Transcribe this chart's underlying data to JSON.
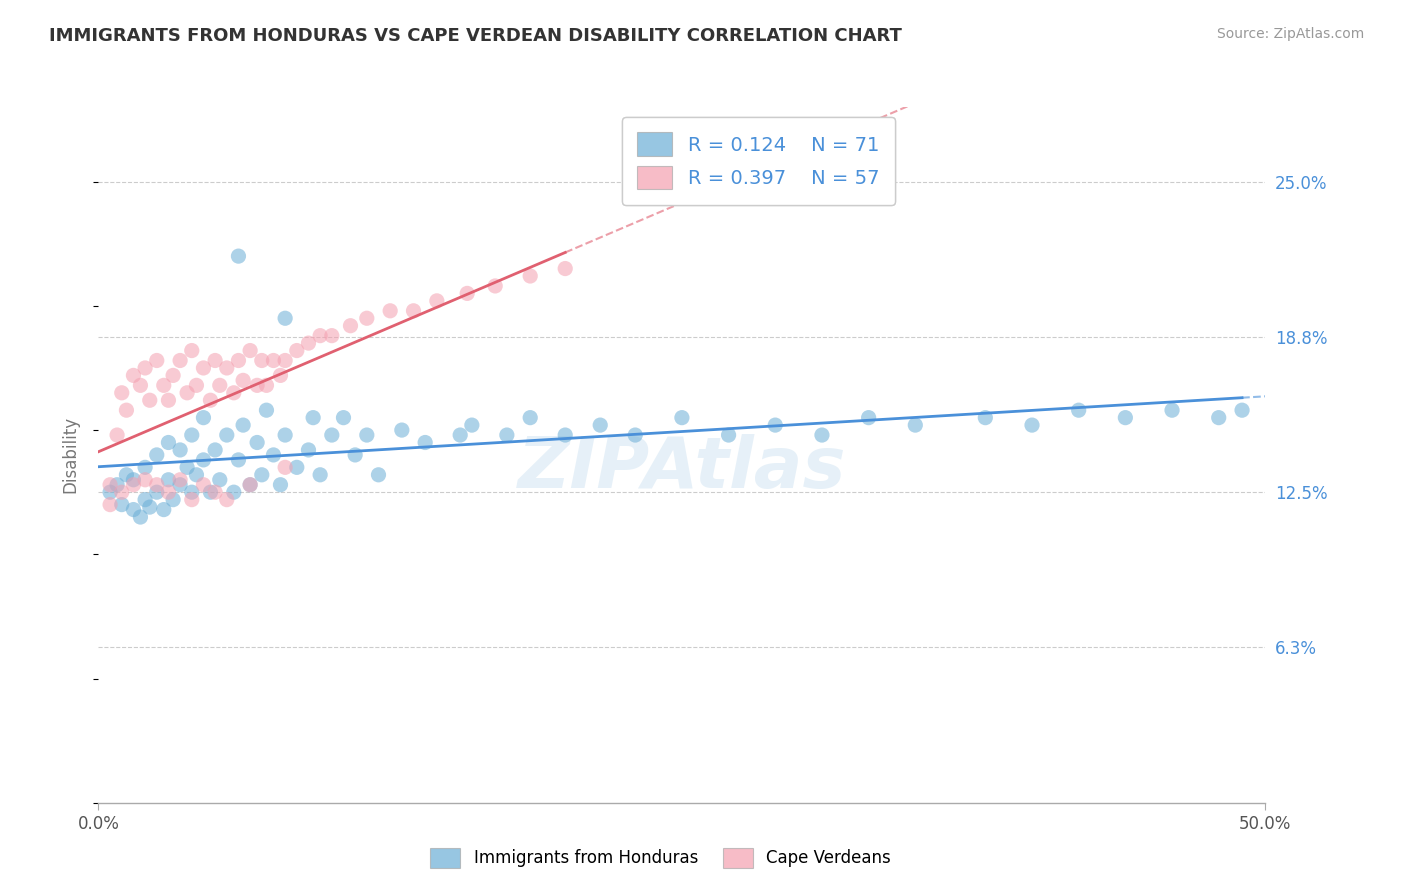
{
  "title": "IMMIGRANTS FROM HONDURAS VS CAPE VERDEAN DISABILITY CORRELATION CHART",
  "source": "Source: ZipAtlas.com",
  "ylabel": "Disability",
  "xlim": [
    0.0,
    0.5
  ],
  "ylim": [
    0.0,
    0.28
  ],
  "ytick_values": [
    0.0625,
    0.125,
    0.1875,
    0.25
  ],
  "ytick_labels": [
    "6.3%",
    "12.5%",
    "18.8%",
    "25.0%"
  ],
  "series1_color": "#6baed6",
  "series2_color": "#f4a0b0",
  "line1_color": "#4a90d9",
  "line2_color": "#e06070",
  "legend1_label": "Immigrants from Honduras",
  "legend2_label": "Cape Verdeans",
  "R1": 0.124,
  "N1": 71,
  "R2": 0.397,
  "N2": 57,
  "watermark": "ZIPAtlas",
  "background_color": "#ffffff",
  "grid_color": "#cccccc",
  "blue_scatter_x": [
    0.005,
    0.008,
    0.01,
    0.012,
    0.015,
    0.015,
    0.018,
    0.02,
    0.02,
    0.022,
    0.025,
    0.025,
    0.028,
    0.03,
    0.03,
    0.032,
    0.035,
    0.035,
    0.038,
    0.04,
    0.04,
    0.042,
    0.045,
    0.045,
    0.048,
    0.05,
    0.052,
    0.055,
    0.058,
    0.06,
    0.062,
    0.065,
    0.068,
    0.07,
    0.072,
    0.075,
    0.078,
    0.08,
    0.085,
    0.09,
    0.092,
    0.095,
    0.1,
    0.105,
    0.11,
    0.115,
    0.12,
    0.13,
    0.14,
    0.155,
    0.16,
    0.175,
    0.185,
    0.2,
    0.215,
    0.23,
    0.25,
    0.27,
    0.29,
    0.31,
    0.33,
    0.35,
    0.38,
    0.4,
    0.42,
    0.44,
    0.46,
    0.48,
    0.49,
    0.06,
    0.08
  ],
  "blue_scatter_y": [
    0.125,
    0.128,
    0.12,
    0.132,
    0.118,
    0.13,
    0.115,
    0.122,
    0.135,
    0.119,
    0.125,
    0.14,
    0.118,
    0.13,
    0.145,
    0.122,
    0.128,
    0.142,
    0.135,
    0.125,
    0.148,
    0.132,
    0.138,
    0.155,
    0.125,
    0.142,
    0.13,
    0.148,
    0.125,
    0.138,
    0.152,
    0.128,
    0.145,
    0.132,
    0.158,
    0.14,
    0.128,
    0.148,
    0.135,
    0.142,
    0.155,
    0.132,
    0.148,
    0.155,
    0.14,
    0.148,
    0.132,
    0.15,
    0.145,
    0.148,
    0.152,
    0.148,
    0.155,
    0.148,
    0.152,
    0.148,
    0.155,
    0.148,
    0.152,
    0.148,
    0.155,
    0.152,
    0.155,
    0.152,
    0.158,
    0.155,
    0.158,
    0.155,
    0.158,
    0.22,
    0.195
  ],
  "pink_scatter_x": [
    0.005,
    0.008,
    0.01,
    0.012,
    0.015,
    0.018,
    0.02,
    0.022,
    0.025,
    0.028,
    0.03,
    0.032,
    0.035,
    0.038,
    0.04,
    0.042,
    0.045,
    0.048,
    0.05,
    0.052,
    0.055,
    0.058,
    0.06,
    0.062,
    0.065,
    0.068,
    0.07,
    0.072,
    0.075,
    0.078,
    0.08,
    0.085,
    0.09,
    0.095,
    0.1,
    0.108,
    0.115,
    0.125,
    0.135,
    0.145,
    0.158,
    0.17,
    0.185,
    0.2,
    0.005,
    0.01,
    0.015,
    0.02,
    0.025,
    0.03,
    0.035,
    0.04,
    0.045,
    0.05,
    0.055,
    0.065,
    0.08
  ],
  "pink_scatter_y": [
    0.128,
    0.148,
    0.165,
    0.158,
    0.172,
    0.168,
    0.175,
    0.162,
    0.178,
    0.168,
    0.162,
    0.172,
    0.178,
    0.165,
    0.182,
    0.168,
    0.175,
    0.162,
    0.178,
    0.168,
    0.175,
    0.165,
    0.178,
    0.17,
    0.182,
    0.168,
    0.178,
    0.168,
    0.178,
    0.172,
    0.178,
    0.182,
    0.185,
    0.188,
    0.188,
    0.192,
    0.195,
    0.198,
    0.198,
    0.202,
    0.205,
    0.208,
    0.212,
    0.215,
    0.12,
    0.125,
    0.128,
    0.13,
    0.128,
    0.125,
    0.13,
    0.122,
    0.128,
    0.125,
    0.122,
    0.128,
    0.135
  ]
}
